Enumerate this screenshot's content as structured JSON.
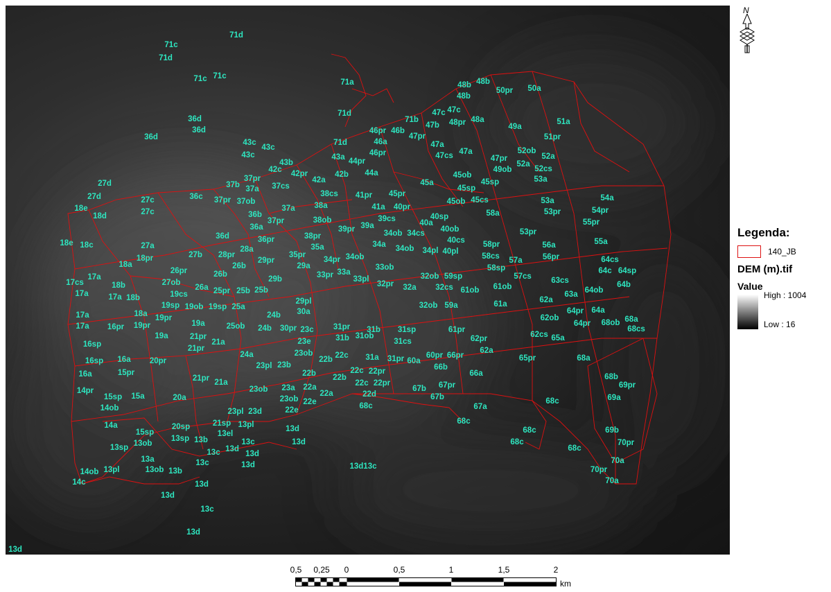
{
  "map": {
    "labels": [
      [
        "71c",
        247,
        64
      ],
      [
        "71d",
        341,
        50
      ],
      [
        "71d",
        239,
        83
      ],
      [
        "71c",
        289,
        113
      ],
      [
        "71c",
        317,
        109
      ],
      [
        "71a",
        501,
        118
      ],
      [
        "71d",
        497,
        163
      ],
      [
        "36d",
        281,
        171
      ],
      [
        "36d",
        287,
        187
      ],
      [
        "36d",
        218,
        197
      ],
      [
        "48b",
        670,
        122
      ],
      [
        "48b",
        697,
        117
      ],
      [
        "48b",
        669,
        138
      ],
      [
        "50pr",
        728,
        130
      ],
      [
        "50a",
        771,
        127
      ],
      [
        "71b",
        594,
        172
      ],
      [
        "47c",
        633,
        162
      ],
      [
        "47c",
        655,
        158
      ],
      [
        "47b",
        624,
        180
      ],
      [
        "48pr",
        660,
        176
      ],
      [
        "48a",
        689,
        172
      ],
      [
        "51a",
        813,
        175
      ],
      [
        "49a",
        743,
        182
      ],
      [
        "46pr",
        545,
        188
      ],
      [
        "46b",
        574,
        188
      ],
      [
        "47pr",
        602,
        196
      ],
      [
        "51pr",
        797,
        197
      ],
      [
        "43c",
        360,
        205
      ],
      [
        "43c",
        387,
        212
      ],
      [
        "43c",
        358,
        223
      ],
      [
        "71d",
        491,
        205
      ],
      [
        "46a",
        549,
        204
      ],
      [
        "47a",
        631,
        208
      ],
      [
        "52ob",
        760,
        217
      ],
      [
        "52a",
        791,
        225
      ],
      [
        "47cs",
        641,
        224
      ],
      [
        "47a",
        672,
        218
      ],
      [
        "43b",
        413,
        234
      ],
      [
        "43a",
        488,
        226
      ],
      [
        "44pr",
        515,
        232
      ],
      [
        "46pr",
        545,
        220
      ],
      [
        "47pr",
        720,
        228
      ],
      [
        "52a",
        755,
        236
      ],
      [
        "52cs",
        784,
        243
      ],
      [
        "49ob",
        725,
        244
      ],
      [
        "42c",
        397,
        244
      ],
      [
        "42pr",
        432,
        250
      ],
      [
        "42a",
        460,
        259
      ],
      [
        "42b",
        493,
        251
      ],
      [
        "44a",
        536,
        249
      ],
      [
        "53a",
        780,
        258
      ],
      [
        "27d",
        151,
        264
      ],
      [
        "37pr",
        364,
        257
      ],
      [
        "37a",
        364,
        272
      ],
      [
        "37cs",
        405,
        268
      ],
      [
        "37b",
        336,
        266
      ],
      [
        "45ob",
        667,
        252
      ],
      [
        "45a",
        616,
        263
      ],
      [
        "45sp",
        673,
        271
      ],
      [
        "45sp",
        707,
        262
      ],
      [
        "38cs",
        475,
        279
      ],
      [
        "41pr",
        525,
        281
      ],
      [
        "45pr",
        573,
        279
      ],
      [
        "27d",
        136,
        283
      ],
      [
        "36c",
        283,
        283
      ],
      [
        "37pr",
        321,
        288
      ],
      [
        "37ob",
        355,
        290
      ],
      [
        "38a",
        463,
        296
      ],
      [
        "41a",
        546,
        298
      ],
      [
        "40pr",
        580,
        298
      ],
      [
        "45ob",
        658,
        290
      ],
      [
        "45cs",
        692,
        288
      ],
      [
        "53a",
        790,
        289
      ],
      [
        "54a",
        876,
        285
      ],
      [
        "18e",
        117,
        300
      ],
      [
        "27c",
        213,
        288
      ],
      [
        "27c",
        213,
        305
      ],
      [
        "18d",
        144,
        311
      ],
      [
        "37a",
        416,
        300
      ],
      [
        "36b",
        368,
        309
      ],
      [
        "58a",
        711,
        307
      ],
      [
        "53pr",
        797,
        305
      ],
      [
        "54pr",
        866,
        303
      ],
      [
        "37pr",
        398,
        318
      ],
      [
        "39cs",
        558,
        315
      ],
      [
        "40sp",
        634,
        312
      ],
      [
        "55pr",
        853,
        320
      ],
      [
        "36a",
        370,
        327
      ],
      [
        "38ob",
        465,
        317
      ],
      [
        "39pr",
        500,
        330
      ],
      [
        "39a",
        530,
        325
      ],
      [
        "34ob",
        567,
        336
      ],
      [
        "34cs",
        600,
        336
      ],
      [
        "40a",
        615,
        321
      ],
      [
        "40ob",
        649,
        330
      ],
      [
        "53pr",
        762,
        334
      ],
      [
        "18e",
        96,
        350
      ],
      [
        "18c",
        125,
        353
      ],
      [
        "36d",
        321,
        340
      ],
      [
        "36pr",
        384,
        345
      ],
      [
        "38pr",
        451,
        340
      ],
      [
        "40cs",
        658,
        346
      ],
      [
        "34a",
        547,
        352
      ],
      [
        "58pr",
        709,
        352
      ],
      [
        "56a",
        792,
        353
      ],
      [
        "55a",
        867,
        348
      ],
      [
        "27a",
        213,
        354
      ],
      [
        "35a",
        458,
        356
      ],
      [
        "34ob",
        584,
        358
      ],
      [
        "34pl",
        621,
        361
      ],
      [
        "40pl",
        650,
        362
      ],
      [
        "58cs",
        708,
        369
      ],
      [
        "18pr",
        209,
        372
      ],
      [
        "28a",
        356,
        359
      ],
      [
        "27b",
        282,
        367
      ],
      [
        "28pr",
        327,
        367
      ],
      [
        "29pr",
        384,
        375
      ],
      [
        "35pr",
        429,
        367
      ],
      [
        "34pr",
        479,
        374
      ],
      [
        "34ob",
        512,
        370
      ],
      [
        "57a",
        744,
        375
      ],
      [
        "56pr",
        795,
        370
      ],
      [
        "64cs",
        880,
        374
      ],
      [
        "18a",
        181,
        381
      ],
      [
        "26pr",
        258,
        390
      ],
      [
        "26b",
        345,
        383
      ],
      [
        "29a",
        438,
        383
      ],
      [
        "33ob",
        555,
        385
      ],
      [
        "58sp",
        716,
        386
      ],
      [
        "64c",
        873,
        390
      ],
      [
        "64sp",
        905,
        390
      ],
      [
        "17a",
        136,
        399
      ],
      [
        "27ob",
        247,
        407
      ],
      [
        "26b",
        318,
        395
      ],
      [
        "33pr",
        469,
        396
      ],
      [
        "33a",
        496,
        392
      ],
      [
        "32ob",
        620,
        398
      ],
      [
        "59sp",
        654,
        398
      ],
      [
        "57cs",
        754,
        398
      ],
      [
        "63cs",
        808,
        404
      ],
      [
        "64b",
        900,
        410
      ],
      [
        "17cs",
        108,
        407
      ],
      [
        "26a",
        291,
        414
      ],
      [
        "25pr",
        320,
        419
      ],
      [
        "25b",
        351,
        419
      ],
      [
        "25b",
        377,
        418
      ],
      [
        "29b",
        397,
        402
      ],
      [
        "33pl",
        521,
        402
      ],
      [
        "32pr",
        556,
        409
      ],
      [
        "32a",
        591,
        414
      ],
      [
        "32cs",
        641,
        414
      ],
      [
        "61ob",
        678,
        418
      ],
      [
        "61ob",
        725,
        413
      ],
      [
        "64ob",
        857,
        418
      ],
      [
        "18b",
        171,
        411
      ],
      [
        "17a",
        118,
        423
      ],
      [
        "17a",
        166,
        428
      ],
      [
        "18b",
        192,
        429
      ],
      [
        "19cs",
        258,
        424
      ],
      [
        "63a",
        824,
        424
      ],
      [
        "62a",
        788,
        432
      ],
      [
        "29pl",
        438,
        434
      ],
      [
        "19sp",
        246,
        440
      ],
      [
        "19ob",
        280,
        442
      ],
      [
        "19sp",
        314,
        442
      ],
      [
        "25a",
        344,
        442
      ],
      [
        "30a",
        438,
        449
      ],
      [
        "32ob",
        618,
        440
      ],
      [
        "59a",
        651,
        440
      ],
      [
        "61a",
        722,
        438
      ],
      [
        "64pr",
        830,
        448
      ],
      [
        "64a",
        863,
        447
      ],
      [
        "68a",
        911,
        460
      ],
      [
        "17a",
        119,
        454
      ],
      [
        "18a",
        203,
        452
      ],
      [
        "19pr",
        236,
        458
      ],
      [
        "24b",
        395,
        454
      ],
      [
        "62ob",
        793,
        458
      ],
      [
        "64pr",
        840,
        466
      ],
      [
        "68ob",
        881,
        465
      ],
      [
        "68cs",
        918,
        474
      ],
      [
        "17a",
        119,
        470
      ],
      [
        "16pr",
        167,
        471
      ],
      [
        "19pr",
        205,
        469
      ],
      [
        "19a",
        286,
        466
      ],
      [
        "25ob",
        340,
        470
      ],
      [
        "24b",
        382,
        473
      ],
      [
        "30pr",
        416,
        473
      ],
      [
        "23c",
        443,
        475
      ],
      [
        "31pr",
        493,
        471
      ],
      [
        "31b",
        539,
        475
      ],
      [
        "31sp",
        587,
        475
      ],
      [
        "61pr",
        659,
        475
      ],
      [
        "16sp",
        133,
        496
      ],
      [
        "19a",
        233,
        484
      ],
      [
        "21pr",
        286,
        485
      ],
      [
        "21a",
        315,
        493
      ],
      [
        "23e",
        439,
        492
      ],
      [
        "31b",
        494,
        487
      ],
      [
        "31ob",
        526,
        484
      ],
      [
        "31cs",
        581,
        492
      ],
      [
        "62pr",
        691,
        488
      ],
      [
        "62cs",
        778,
        482
      ],
      [
        "65a",
        805,
        487
      ],
      [
        "21pr",
        283,
        502
      ],
      [
        "23ob",
        438,
        509
      ],
      [
        "62a",
        702,
        505
      ],
      [
        "16sp",
        136,
        520
      ],
      [
        "16a",
        179,
        518
      ],
      [
        "20pr",
        228,
        520
      ],
      [
        "24a",
        356,
        511
      ],
      [
        "23pl",
        381,
        527
      ],
      [
        "23b",
        410,
        526
      ],
      [
        "22b",
        470,
        518
      ],
      [
        "22c",
        493,
        512
      ],
      [
        "31a",
        537,
        515
      ],
      [
        "31pr",
        571,
        517
      ],
      [
        "60pr",
        627,
        512
      ],
      [
        "66pr",
        657,
        512
      ],
      [
        "60a",
        597,
        520
      ],
      [
        "65pr",
        761,
        516
      ],
      [
        "68a",
        842,
        516
      ],
      [
        "16a",
        123,
        539
      ],
      [
        "15pr",
        182,
        537
      ],
      [
        "66b",
        636,
        529
      ],
      [
        "22b",
        446,
        538
      ],
      [
        "22c",
        515,
        534
      ],
      [
        "22pr",
        544,
        535
      ],
      [
        "66a",
        687,
        538
      ],
      [
        "68b",
        882,
        543
      ],
      [
        "21pr",
        290,
        545
      ],
      [
        "21a",
        319,
        551
      ],
      [
        "22b",
        490,
        544
      ],
      [
        "22c",
        522,
        552
      ],
      [
        "22pr",
        551,
        552
      ],
      [
        "69pr",
        905,
        555
      ],
      [
        "14pr",
        123,
        563
      ],
      [
        "15sp",
        163,
        572
      ],
      [
        "15a",
        199,
        571
      ],
      [
        "20a",
        259,
        573
      ],
      [
        "23ob",
        373,
        561
      ],
      [
        "23a",
        416,
        559
      ],
      [
        "22a",
        447,
        558
      ],
      [
        "22d",
        533,
        568
      ],
      [
        "67b",
        605,
        560
      ],
      [
        "67pr",
        645,
        555
      ],
      [
        "68c",
        797,
        578
      ],
      [
        "69a",
        886,
        573
      ],
      [
        "14ob",
        158,
        588
      ],
      [
        "23ob",
        417,
        575
      ],
      [
        "22e",
        447,
        579
      ],
      [
        "22a",
        471,
        567
      ],
      [
        "67b",
        631,
        572
      ],
      [
        "67a",
        693,
        586
      ],
      [
        "68c",
        528,
        585
      ],
      [
        "23pl",
        340,
        593
      ],
      [
        "23d",
        368,
        593
      ],
      [
        "22e",
        421,
        591
      ],
      [
        "14a",
        160,
        613
      ],
      [
        "15sp",
        209,
        623
      ],
      [
        "20sp",
        261,
        615
      ],
      [
        "21sp",
        320,
        610
      ],
      [
        "13pl",
        355,
        612
      ],
      [
        "68c",
        669,
        607
      ],
      [
        "69b",
        883,
        620
      ],
      [
        "13ob",
        206,
        639
      ],
      [
        "13sp",
        172,
        645
      ],
      [
        "13sp",
        260,
        632
      ],
      [
        "13b",
        290,
        634
      ],
      [
        "13el",
        325,
        625
      ],
      [
        "13d",
        422,
        618
      ],
      [
        "13d",
        431,
        637
      ],
      [
        "68c",
        764,
        620
      ],
      [
        "13c",
        308,
        652
      ],
      [
        "13d",
        335,
        647
      ],
      [
        "13c",
        358,
        637
      ],
      [
        "13d",
        364,
        654
      ],
      [
        "68c",
        746,
        637
      ],
      [
        "70pr",
        903,
        638
      ],
      [
        "68c",
        829,
        646
      ],
      [
        "13a",
        213,
        662
      ],
      [
        "13c",
        292,
        667
      ],
      [
        "13d",
        358,
        670
      ],
      [
        "13d13c",
        524,
        672
      ],
      [
        "70a",
        891,
        664
      ],
      [
        "14ob",
        129,
        680
      ],
      [
        "13pl",
        161,
        677
      ],
      [
        "13ob",
        223,
        677
      ],
      [
        "13b",
        253,
        679
      ],
      [
        "70pr",
        864,
        677
      ],
      [
        "14c",
        114,
        695
      ],
      [
        "13d",
        291,
        698
      ],
      [
        "70a",
        883,
        693
      ],
      [
        "13d",
        242,
        714
      ],
      [
        "13c",
        299,
        734
      ],
      [
        "13d",
        279,
        767
      ],
      [
        "13d",
        22,
        792
      ]
    ],
    "boundary_color": "#e01010",
    "label_color": "#2ee6c0"
  },
  "north_arrow": {
    "letter": "N",
    "icon": "north-arrow-icon"
  },
  "legend": {
    "title": "Legenda:",
    "vector_layer": "140_JB",
    "raster_layer": "DEM (m).tif",
    "value_label": "Value",
    "high": "High : 1004",
    "low": "Low : 16"
  },
  "scalebar": {
    "ticks": [
      "0,5",
      "0,25",
      "0",
      "0,5",
      "1",
      "1,5",
      "2"
    ],
    "unit": "km"
  }
}
